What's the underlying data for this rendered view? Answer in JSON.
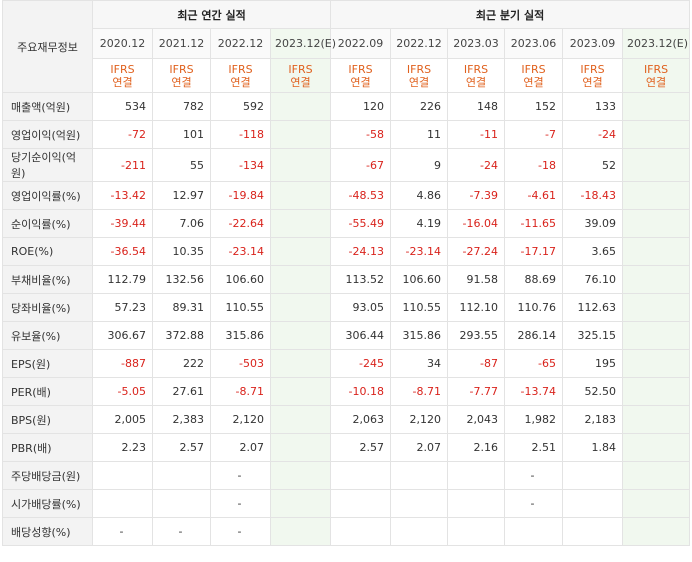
{
  "header": {
    "corner": "주요재무정보",
    "annual_title": "최근 연간 실적",
    "quarter_title": "최근 분기 실적",
    "periods": [
      "2020.12",
      "2021.12",
      "2022.12",
      "2023.12(E)",
      "2022.09",
      "2022.12",
      "2023.03",
      "2023.06",
      "2023.09",
      "2023.12(E)"
    ],
    "basis": [
      "IFRS\n연결",
      "IFRS\n연결",
      "IFRS\n연결",
      "IFRS\n연결",
      "IFRS\n연결",
      "IFRS\n연결",
      "IFRS\n연결",
      "IFRS\n연결",
      "IFRS\n연결",
      "IFRS\n연결"
    ]
  },
  "rows": [
    {
      "label": "매출액(억원)",
      "values": [
        "534",
        "782",
        "592",
        "",
        "120",
        "226",
        "148",
        "152",
        "133",
        ""
      ]
    },
    {
      "label": "영업이익(억원)",
      "values": [
        "-72",
        "101",
        "-118",
        "",
        "-58",
        "11",
        "-11",
        "-7",
        "-24",
        ""
      ]
    },
    {
      "label": "당기순이익(억원)",
      "values": [
        "-211",
        "55",
        "-134",
        "",
        "-67",
        "9",
        "-24",
        "-18",
        "52",
        ""
      ]
    },
    {
      "label": "영업이익률(%)",
      "values": [
        "-13.42",
        "12.97",
        "-19.84",
        "",
        "-48.53",
        "4.86",
        "-7.39",
        "-4.61",
        "-18.43",
        ""
      ]
    },
    {
      "label": "순이익률(%)",
      "values": [
        "-39.44",
        "7.06",
        "-22.64",
        "",
        "-55.49",
        "4.19",
        "-16.04",
        "-11.65",
        "39.09",
        ""
      ]
    },
    {
      "label": "ROE(%)",
      "values": [
        "-36.54",
        "10.35",
        "-23.14",
        "",
        "-24.13",
        "-23.14",
        "-27.24",
        "-17.17",
        "3.65",
        ""
      ]
    },
    {
      "label": "부채비율(%)",
      "values": [
        "112.79",
        "132.56",
        "106.60",
        "",
        "113.52",
        "106.60",
        "91.58",
        "88.69",
        "76.10",
        ""
      ]
    },
    {
      "label": "당좌비율(%)",
      "values": [
        "57.23",
        "89.31",
        "110.55",
        "",
        "93.05",
        "110.55",
        "112.10",
        "110.76",
        "112.63",
        ""
      ]
    },
    {
      "label": "유보율(%)",
      "values": [
        "306.67",
        "372.88",
        "315.86",
        "",
        "306.44",
        "315.86",
        "293.55",
        "286.14",
        "325.15",
        ""
      ]
    },
    {
      "label": "EPS(원)",
      "values": [
        "-887",
        "222",
        "-503",
        "",
        "-245",
        "34",
        "-87",
        "-65",
        "195",
        ""
      ]
    },
    {
      "label": "PER(배)",
      "values": [
        "-5.05",
        "27.61",
        "-8.71",
        "",
        "-10.18",
        "-8.71",
        "-7.77",
        "-13.74",
        "52.50",
        ""
      ]
    },
    {
      "label": "BPS(원)",
      "values": [
        "2,005",
        "2,383",
        "2,120",
        "",
        "2,063",
        "2,120",
        "2,043",
        "1,982",
        "2,183",
        ""
      ]
    },
    {
      "label": "PBR(배)",
      "values": [
        "2.23",
        "2.57",
        "2.07",
        "",
        "2.57",
        "2.07",
        "2.16",
        "2.51",
        "1.84",
        ""
      ]
    },
    {
      "label": "주당배당금(원)",
      "values": [
        "",
        "",
        "-",
        "",
        "",
        "",
        "",
        "-",
        "",
        ""
      ]
    },
    {
      "label": "시가배당률(%)",
      "values": [
        "",
        "",
        "-",
        "",
        "",
        "",
        "",
        "-",
        "",
        ""
      ]
    },
    {
      "label": "배당성향(%)",
      "values": [
        "-",
        "-",
        "-",
        "",
        "",
        "",
        "",
        "",
        "",
        ""
      ]
    }
  ],
  "colors": {
    "negative": "#d9231c",
    "basis": "#e0611e",
    "estimate_bg": "#f1f8ef"
  }
}
